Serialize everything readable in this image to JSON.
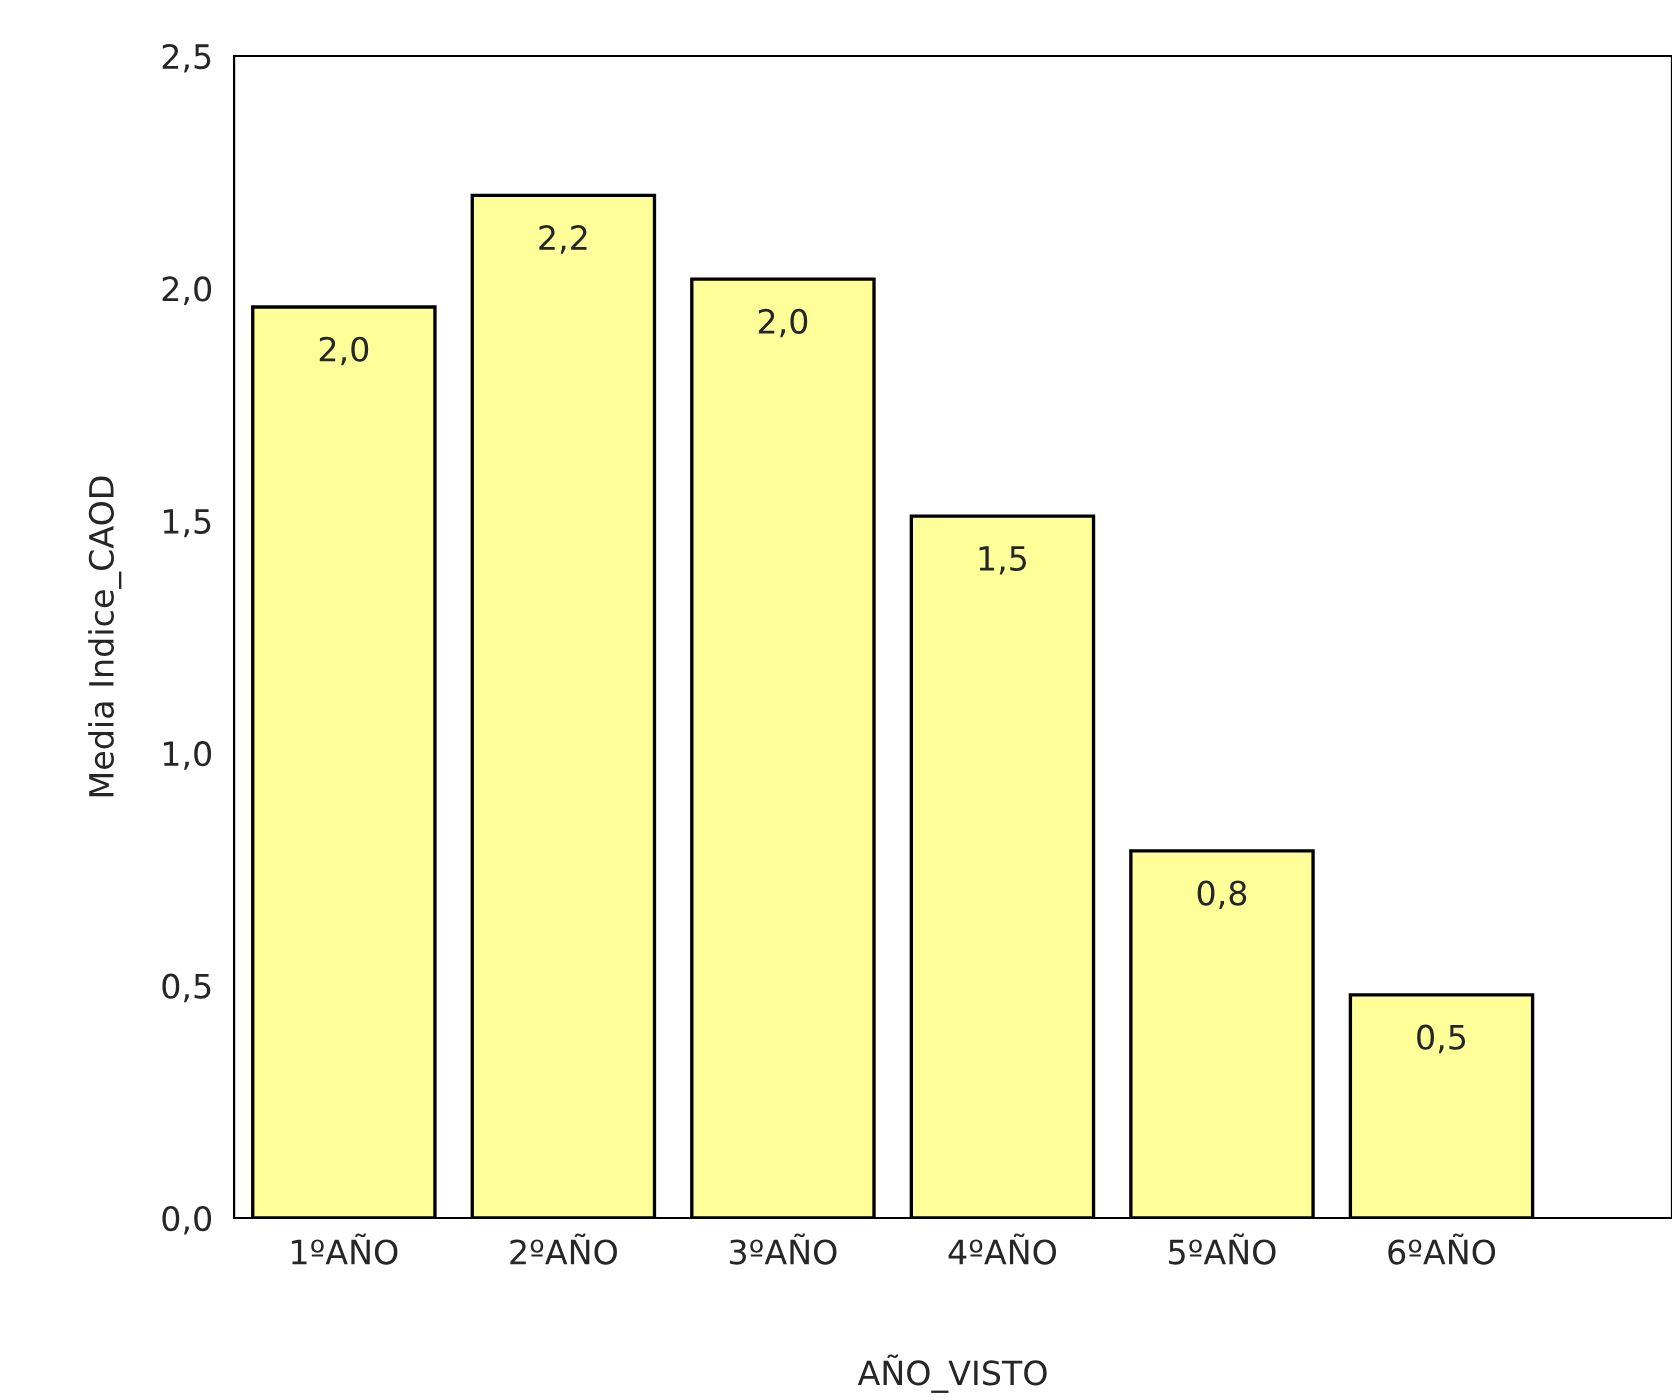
{
  "chart_data": {
    "type": "bar",
    "categories": [
      "1ºAÑO",
      "2ºAÑO",
      "3ºAÑO",
      "4ºAÑO",
      "5ºAÑO",
      "6ºAÑO"
    ],
    "values": [
      1.96,
      2.2,
      2.02,
      1.51,
      0.79,
      0.48
    ],
    "value_labels": [
      "2,0",
      "2,2",
      "2,0",
      "1,5",
      "0,8",
      "0,5"
    ],
    "color": "#ffff99",
    "xlabel": "AÑO_VISTO",
    "ylabel": "Media Indice_CAOD",
    "ylim": [
      0,
      2.5
    ],
    "yticks": [
      {
        "value": 0,
        "label": "0,0"
      },
      {
        "value": 0.5,
        "label": "0,5"
      },
      {
        "value": 1,
        "label": "1,0"
      },
      {
        "value": 1.5,
        "label": "1,5"
      },
      {
        "value": 2,
        "label": "2,0"
      },
      {
        "value": 2.5,
        "label": "2,5"
      }
    ],
    "grid": false
  }
}
